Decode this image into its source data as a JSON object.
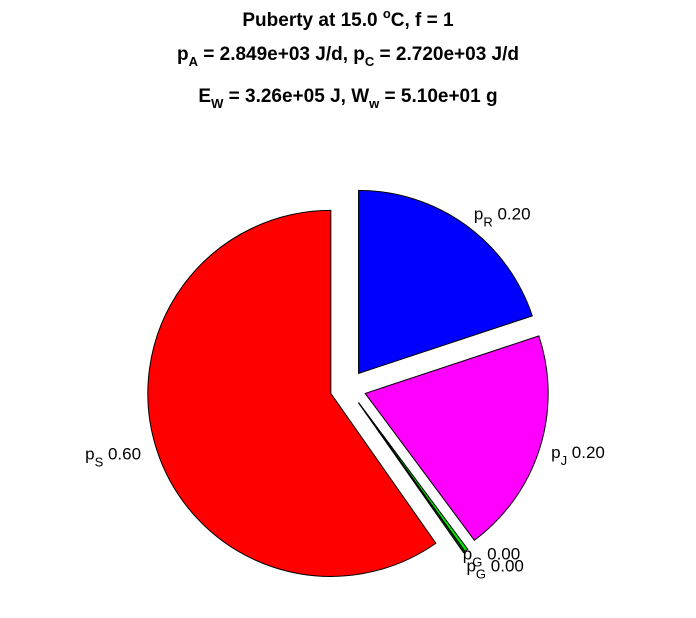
{
  "title": {
    "line1_pre": "Puberty at 15.0 ",
    "line1_sup": "o",
    "line1_post": "C, f = 1",
    "line2_a_sym": "p",
    "line2_a_sub": "A",
    "line2_a_val": " = 2.849e+03 J/d,  ",
    "line2_c_sym": "p",
    "line2_c_sub": "C",
    "line2_c_val": " = 2.720e+03 J/d",
    "line3_e_sym": "E",
    "line3_e_sub": "W",
    "line3_e_val": " = 3.26e+05 J, ",
    "line3_w_sym": "W",
    "line3_w_sub": "w",
    "line3_w_val": " = 5.10e+01 g"
  },
  "chart_data": {
    "type": "pie",
    "exploded": true,
    "slices": [
      {
        "symbol": "p",
        "sub": "S",
        "label": "0.60",
        "value": 0.6,
        "color": "#ff0000"
      },
      {
        "symbol": "p",
        "sub": "R",
        "label": "0.20",
        "value": 0.2,
        "color": "#0000ff"
      },
      {
        "symbol": "p",
        "sub": "J",
        "label": "0.20",
        "value": 0.2,
        "color": "#ff00ff"
      },
      {
        "symbol": "p",
        "sub": "G",
        "label": "0.00",
        "value": 0.003,
        "color": "#00e600"
      },
      {
        "symbol": "p",
        "sub": "G",
        "label": "0.00",
        "value": 0.0015,
        "color": "#006400"
      }
    ]
  }
}
